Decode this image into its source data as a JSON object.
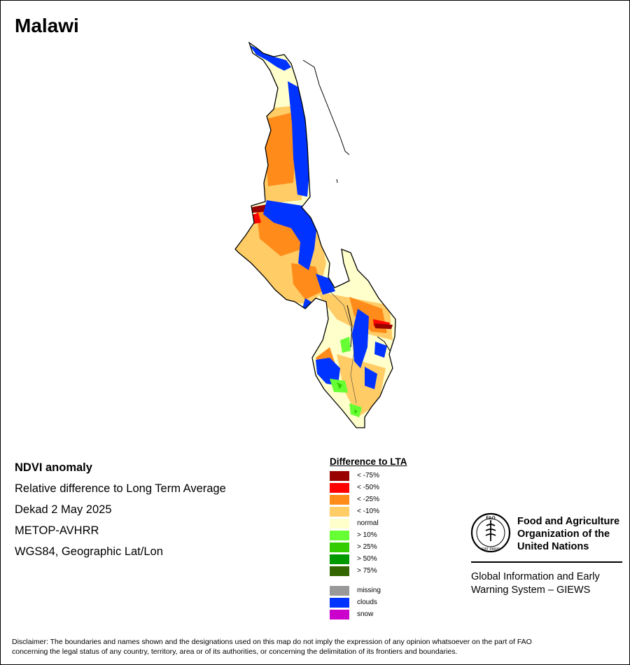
{
  "title": "Malawi",
  "info": [
    "NDVI anomaly",
    "Relative difference to Long Term Average",
    "Dekad 2 May 2025",
    "METOP-AVHRR",
    "WGS84, Geographic Lat/Lon"
  ],
  "legend": {
    "title": "Difference to LTA",
    "classes": [
      {
        "label": "< -75%",
        "color": "#990000"
      },
      {
        "label": "< -50%",
        "color": "#ff0000"
      },
      {
        "label": "< -25%",
        "color": "#ff8c1a"
      },
      {
        "label": "< -10%",
        "color": "#ffcc66"
      },
      {
        "label": "normal",
        "color": "#ffffcc"
      },
      {
        "label": "> 10%",
        "color": "#66ff33"
      },
      {
        "label": "> 25%",
        "color": "#33cc00"
      },
      {
        "label": "> 50%",
        "color": "#009900"
      },
      {
        "label": "> 75%",
        "color": "#336600"
      }
    ],
    "extra": [
      {
        "label": "missing",
        "color": "#999999"
      },
      {
        "label": "clouds",
        "color": "#0033ff"
      },
      {
        "label": "snow",
        "color": "#cc00cc"
      }
    ]
  },
  "org": {
    "logo_letters": "FAO",
    "logo_motto": "FIAT PANIS",
    "name_lines": [
      "Food and Agriculture",
      "Organization of the",
      "United Nations"
    ],
    "program_lines": [
      "Global Information and Early",
      "Warning System – GIEWS"
    ]
  },
  "disclaimer_lines": [
    "Disclaimer: The boundaries and names shown and the designations used on this map do not imply the expression of any opinion whatsoever on the part of FAO",
    "concerning the legal status of any country, territory, area or of its authorities, or concerning the delimitation of its frontiers and boundaries."
  ]
}
